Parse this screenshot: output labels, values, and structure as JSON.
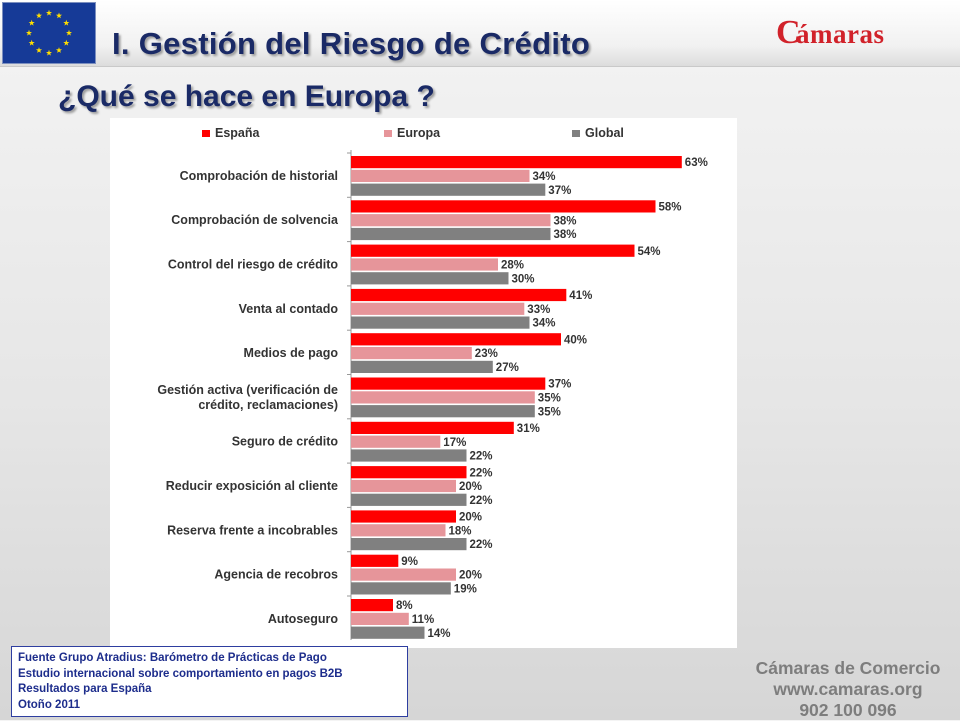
{
  "header": {
    "title": "I. Gestión del Riesgo de Crédito",
    "logo_initial": "C",
    "logo_text": "ámaras"
  },
  "subtitle": "¿Qué se hace en Europa ?",
  "colors": {
    "espana": "#ff0000",
    "europa": "#e6959a",
    "global": "#808080",
    "title": "#1a2a66",
    "logo": "#d1222a"
  },
  "chart_data": {
    "type": "bar",
    "orientation": "horizontal",
    "unit": "%",
    "xlim": [
      0,
      70
    ],
    "legend_position": "top",
    "categories": [
      "Comprobación de historial",
      "Comprobación de solvencia",
      "Control del riesgo de crédito",
      "Venta al contado",
      "Medios de pago",
      "Gestión activa (verificación de crédito, reclamaciones)",
      "Seguro de crédito",
      "Reducir exposición al cliente",
      "Reserva frente a incobrables",
      "Agencia de recobros",
      "Autoseguro"
    ],
    "category_lines": [
      [
        "Comprobación de historial"
      ],
      [
        "Comprobación de solvencia"
      ],
      [
        "Control del riesgo de crédito"
      ],
      [
        "Venta al contado"
      ],
      [
        "Medios de pago"
      ],
      [
        "Gestión activa (verificación de",
        "crédito, reclamaciones)"
      ],
      [
        "Seguro de crédito"
      ],
      [
        "Reducir exposición al cliente"
      ],
      [
        "Reserva frente a incobrables"
      ],
      [
        "Agencia de recobros"
      ],
      [
        "Autoseguro"
      ]
    ],
    "series": [
      {
        "name": "España",
        "color": "#ff0000",
        "values": [
          63,
          58,
          54,
          41,
          40,
          37,
          31,
          22,
          20,
          9,
          8
        ]
      },
      {
        "name": "Europa",
        "color": "#e6959a",
        "values": [
          34,
          38,
          28,
          33,
          23,
          35,
          17,
          20,
          18,
          20,
          11
        ]
      },
      {
        "name": "Global",
        "color": "#808080",
        "values": [
          37,
          38,
          30,
          34,
          27,
          35,
          22,
          22,
          22,
          19,
          14
        ]
      }
    ]
  },
  "source": {
    "lines": [
      "Fuente Grupo Atradius:  Barómetro de Prácticas de Pago",
      "Estudio internacional sobre comportamiento en pagos B2B",
      "Resultados para España",
      "Otoño 2011"
    ]
  },
  "footer": {
    "line1": "Cámaras de Comercio",
    "line2": "www.camaras.org",
    "line3": "902 100 096"
  }
}
